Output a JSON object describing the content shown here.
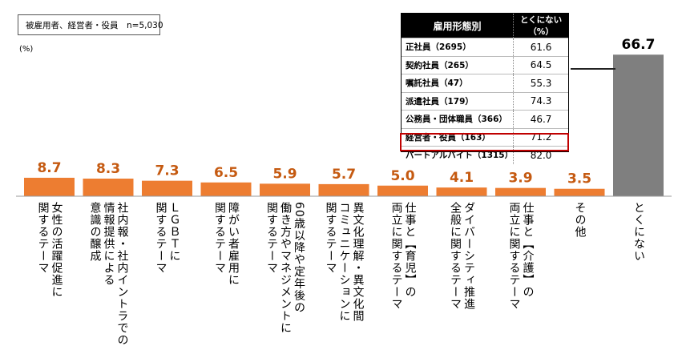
{
  "legend": {
    "sample_text": "被雇用者、経営者・役員　n=5,030",
    "unit": "(%)"
  },
  "colors": {
    "bar": "#ed7d31",
    "bar_highlight": "#7f7f7f",
    "value_text": "#c55a11",
    "highlight_value_text": "#000000",
    "border_highlight": "#c00000"
  },
  "chart_data": {
    "type": "bar",
    "categories": [
      "女性の活躍促進に\n関するテーマ",
      "社内報・社内イントラでの\n情報提供による\n意識の醸成",
      "ＬＧＢＴに\n関するテーマ",
      "障がい者雇用に\n関するテーマ",
      "60歳以降や定年後の\n働き方やマネジメントに\n関するテーマ",
      "異文化理解・異文化間\nコミュニケーションに\n関するテーマ",
      "仕事と【育児】の\n両立に関するテーマ",
      "ダイバーシティ推進\n全般に関するテーマ",
      "仕事と【介護】の\n両立に関するテーマ",
      "その他",
      "とくにない"
    ],
    "values": [
      8.7,
      8.3,
      7.3,
      6.5,
      5.9,
      5.7,
      5.0,
      4.1,
      3.9,
      3.5,
      66.7
    ],
    "data_labels": [
      "8.7",
      "8.3",
      "7.3",
      "6.5",
      "5.9",
      "5.7",
      "5.0",
      "4.1",
      "3.9",
      "3.5",
      "66.7"
    ],
    "highlight_index": 10,
    "ylim": [
      0,
      100
    ],
    "grid": false
  },
  "inset_table": {
    "header": [
      "雇用形態別",
      "とくにない（%）"
    ],
    "rows": [
      {
        "label": "正社員（2695）",
        "value": "61.6"
      },
      {
        "label": "契約社員（265）",
        "value": "64.5"
      },
      {
        "label": "嘱託社員（47）",
        "value": "55.3"
      },
      {
        "label": "派遣社員（179）",
        "value": "74.3"
      },
      {
        "label": "公務員・団体職員（366）",
        "value": "46.7"
      },
      {
        "label": "経営者・役員（163）",
        "value": "71.2"
      },
      {
        "label": "パートアルバイト（1315）",
        "value": "82.0"
      }
    ],
    "highlight_row": 6
  }
}
